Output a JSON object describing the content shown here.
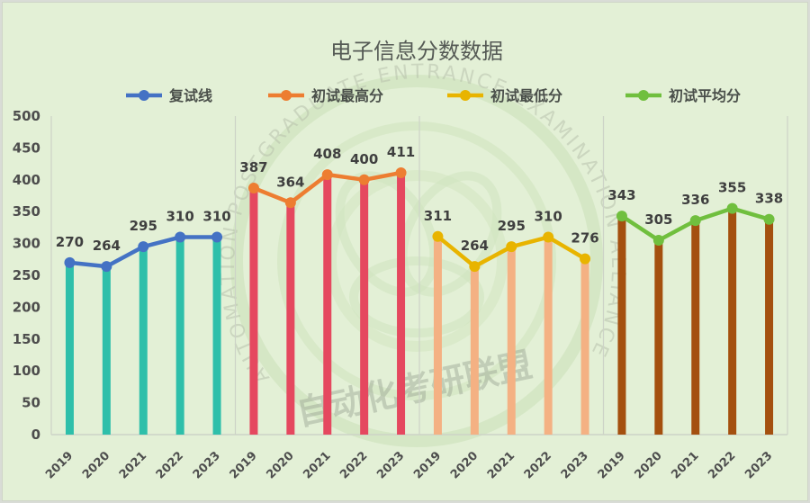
{
  "chart_data": {
    "type": "line",
    "title": "电子信息分数数据",
    "xlabel": "",
    "ylabel": "",
    "ylim": [
      0,
      500
    ],
    "yticks": [
      0,
      50,
      100,
      150,
      200,
      250,
      300,
      350,
      400,
      450,
      500
    ],
    "grid": false,
    "legend_position": "top",
    "categories": [
      "2019",
      "2020",
      "2021",
      "2022",
      "2023"
    ],
    "series": [
      {
        "name": "复试线",
        "values": [
          270,
          264,
          295,
          310,
          310
        ],
        "line_color": "#4472c4",
        "bar_color": "#2ebfaa"
      },
      {
        "name": "初试最高分",
        "values": [
          387,
          364,
          408,
          400,
          411
        ],
        "line_color": "#ed7d31",
        "bar_color": "#e5485f"
      },
      {
        "name": "初试最低分",
        "values": [
          311,
          264,
          295,
          310,
          276
        ],
        "line_color": "#e8b400",
        "bar_color": "#f4b183"
      },
      {
        "name": "初试平均分",
        "values": [
          343,
          305,
          336,
          355,
          338
        ],
        "line_color": "#70bf3e",
        "bar_color": "#a4500f"
      }
    ],
    "layout_note": "Four side-by-side panels (one per series) sharing y-axis; each panel shows thin vertical bars plus a line with markers and data labels"
  },
  "watermark": {
    "text": "自动化考研联盟",
    "ring_text": "AUTOMATION POSTGRADUATE ENTRANCE EXAMINATION ALLIANCE"
  }
}
